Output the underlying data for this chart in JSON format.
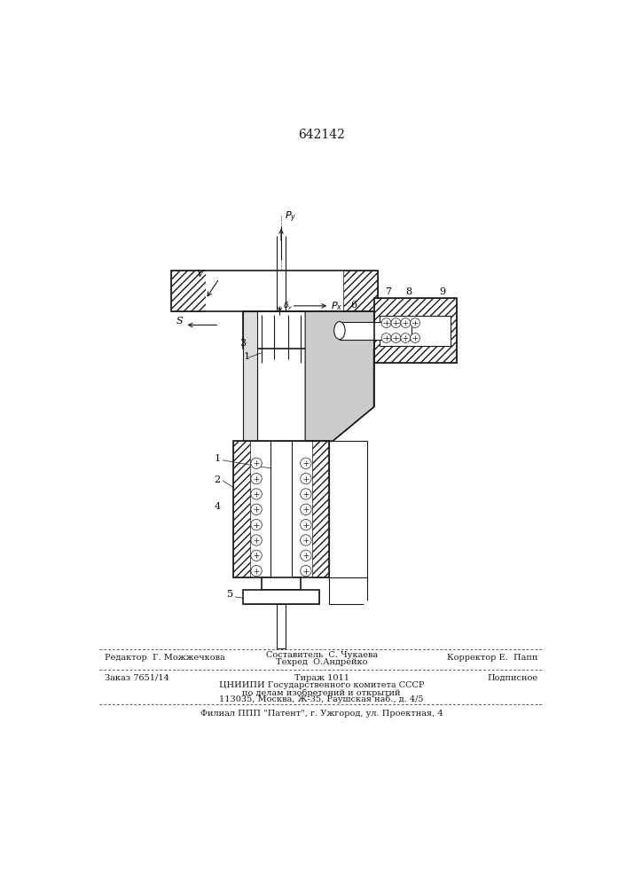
{
  "patent_number": "642142",
  "bg_color": "#ffffff",
  "line_color": "#1a1a1a",
  "footer_line1_left": "Редактор  Г. Можжечкова",
  "footer_line1_center_top": "Составитель  С. Чукаева",
  "footer_line1_center_bot": "Техред  О.Андрейко",
  "footer_line1_right": "Корректор Е.  Папп",
  "footer_line2_left": "Заказ 7651/14",
  "footer_line2_center": "Тираж 1011",
  "footer_line2_right": "Подписное",
  "footer_line3a": "ЦНИИПИ Государственного комитета СССР",
  "footer_line3b": "по делам изобретений и открытий",
  "footer_line3c": "113035, Москва, Ж-35, Раушская наб., д. 4/5",
  "footer_line4": "Филиал ППП \"Патент\", г. Ужгород, ул. Проектная, 4"
}
